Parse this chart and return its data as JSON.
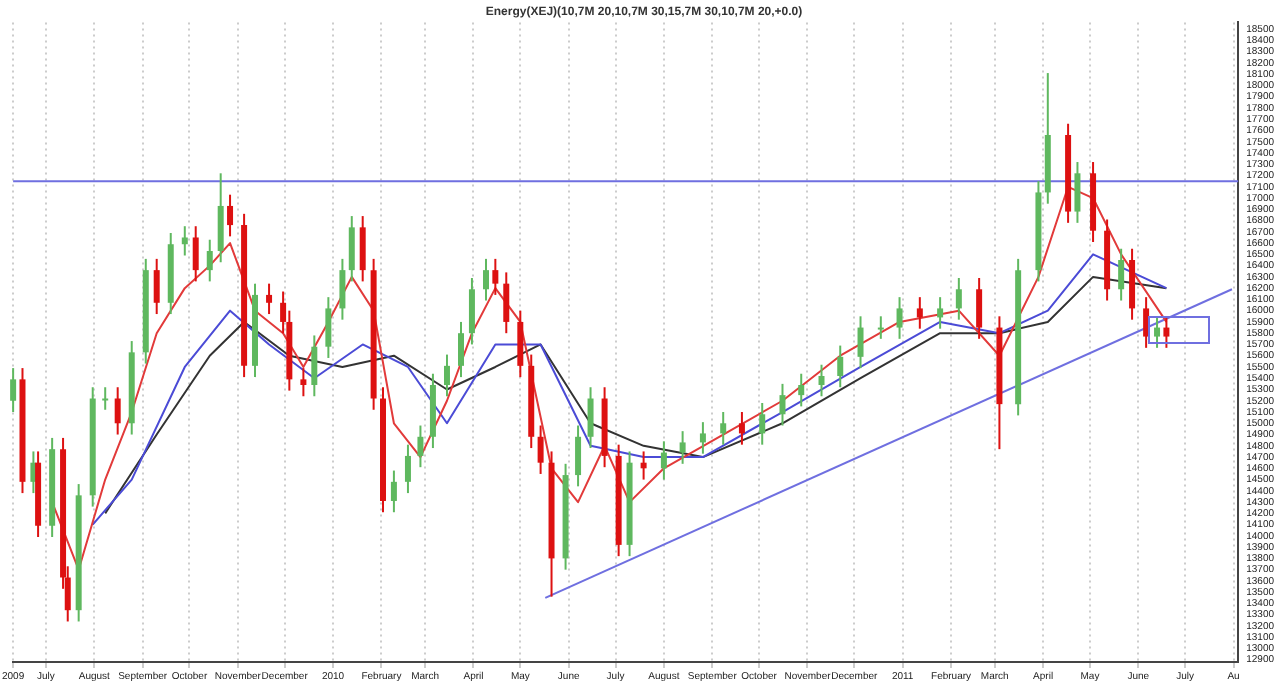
{
  "chart_data": {
    "type": "candlestick",
    "title": "Energy(XEJ)(10,7M 20,10,7M 30,15,7M 30,10,7M 20,+0.0)",
    "x": [
      "2009-06-10",
      "2009-06-16",
      "2009-06-23",
      "2009-06-26",
      "2009-07-05",
      "2009-07-12",
      "2009-07-15",
      "2009-07-22",
      "2009-07-31",
      "2009-08-08",
      "2009-08-16",
      "2009-08-25",
      "2009-09-03",
      "2009-09-10",
      "2009-09-19",
      "2009-09-28",
      "2009-10-05",
      "2009-10-14",
      "2009-10-21",
      "2009-10-27",
      "2009-11-05",
      "2009-11-12",
      "2009-11-21",
      "2009-11-30",
      "2009-12-04",
      "2009-12-13",
      "2009-12-20",
      "2009-12-29",
      "2010-01-07",
      "2010-01-13",
      "2010-01-20",
      "2010-01-27",
      "2010-02-02",
      "2010-02-09",
      "2010-02-18",
      "2010-02-26",
      "2010-03-06",
      "2010-03-15",
      "2010-03-24",
      "2010-03-31",
      "2010-04-09",
      "2010-04-15",
      "2010-04-22",
      "2010-05-01",
      "2010-05-08",
      "2010-05-14",
      "2010-05-21",
      "2010-05-30",
      "2010-06-07",
      "2010-06-15",
      "2010-06-24",
      "2010-07-03",
      "2010-07-10",
      "2010-07-19",
      "2010-08-01",
      "2010-08-13",
      "2010-08-26",
      "2010-09-08",
      "2010-09-20",
      "2010-10-03",
      "2010-10-16",
      "2010-10-28",
      "2010-11-10",
      "2010-11-22",
      "2010-12-05",
      "2010-12-18",
      "2010-12-30",
      "2011-01-12",
      "2011-01-25",
      "2011-02-06",
      "2011-02-19",
      "2011-03-04",
      "2011-03-16",
      "2011-03-29",
      "2011-04-04",
      "2011-04-17",
      "2011-04-23",
      "2011-05-03",
      "2011-05-12",
      "2011-05-21",
      "2011-05-28",
      "2011-06-06",
      "2011-06-13",
      "2011-06-19"
    ],
    "ohlc": [
      [
        15200,
        15490,
        15100,
        15390
      ],
      [
        15390,
        15490,
        14380,
        14480
      ],
      [
        14480,
        14750,
        14380,
        14650
      ],
      [
        14650,
        14750,
        13990,
        14090
      ],
      [
        14090,
        14870,
        13990,
        14770
      ],
      [
        14770,
        14870,
        13530,
        13630
      ],
      [
        13630,
        13730,
        13240,
        13340
      ],
      [
        13340,
        14460,
        13240,
        14360
      ],
      [
        14360,
        15320,
        14260,
        15220
      ],
      [
        15220,
        15320,
        15120,
        15220
      ],
      [
        15220,
        15320,
        14900,
        15000
      ],
      [
        15000,
        15730,
        14900,
        15630
      ],
      [
        15630,
        16460,
        15530,
        16360
      ],
      [
        16360,
        16460,
        15970,
        16070
      ],
      [
        16070,
        16690,
        15970,
        16590
      ],
      [
        16590,
        16750,
        16490,
        16650
      ],
      [
        16650,
        16750,
        16260,
        16360
      ],
      [
        16360,
        16630,
        16260,
        16530
      ],
      [
        16530,
        17220,
        16430,
        16930
      ],
      [
        16930,
        17030,
        16660,
        16760
      ],
      [
        16760,
        16860,
        15410,
        15510
      ],
      [
        15510,
        16240,
        15410,
        16140
      ],
      [
        16140,
        16240,
        15970,
        16070
      ],
      [
        16070,
        16170,
        15800,
        15900
      ],
      [
        15900,
        16000,
        15290,
        15390
      ],
      [
        15390,
        15490,
        15240,
        15340
      ],
      [
        15340,
        15780,
        15240,
        15680
      ],
      [
        15680,
        16120,
        15580,
        16020
      ],
      [
        16020,
        16460,
        15920,
        16360
      ],
      [
        16360,
        16840,
        16260,
        16740
      ],
      [
        16740,
        16840,
        16260,
        16360
      ],
      [
        16360,
        16460,
        15120,
        15220
      ],
      [
        15220,
        15320,
        14210,
        14310
      ],
      [
        14310,
        14580,
        14210,
        14480
      ],
      [
        14480,
        14810,
        14380,
        14710
      ],
      [
        14710,
        14980,
        14610,
        14880
      ],
      [
        14880,
        15440,
        14780,
        15340
      ],
      [
        15340,
        15610,
        15240,
        15510
      ],
      [
        15510,
        15900,
        15410,
        15800
      ],
      [
        15800,
        16290,
        15700,
        16190
      ],
      [
        16190,
        16460,
        16090,
        16360
      ],
      [
        16360,
        16460,
        16140,
        16240
      ],
      [
        16240,
        16340,
        15800,
        15900
      ],
      [
        15900,
        16000,
        15410,
        15510
      ],
      [
        15510,
        15610,
        14780,
        14880
      ],
      [
        14880,
        14980,
        14550,
        14650
      ],
      [
        14650,
        14750,
        13460,
        13800
      ],
      [
        13800,
        14640,
        13700,
        14540
      ],
      [
        14540,
        14980,
        14440,
        14880
      ],
      [
        14880,
        15320,
        14780,
        15220
      ],
      [
        15220,
        15320,
        14610,
        14710
      ],
      [
        14710,
        14810,
        13820,
        13920
      ],
      [
        13920,
        14750,
        13820,
        14650
      ],
      [
        14650,
        14750,
        14500,
        14600
      ],
      [
        14600,
        14840,
        14500,
        14740
      ],
      [
        14740,
        14930,
        14640,
        14830
      ],
      [
        14830,
        15010,
        14730,
        14910
      ],
      [
        14910,
        15100,
        14810,
        15000
      ],
      [
        15000,
        15100,
        14810,
        14910
      ],
      [
        14910,
        15180,
        14810,
        15080
      ],
      [
        15080,
        15350,
        14980,
        15250
      ],
      [
        15250,
        15440,
        15150,
        15340
      ],
      [
        15340,
        15520,
        15240,
        15420
      ],
      [
        15420,
        15690,
        15320,
        15590
      ],
      [
        15590,
        15950,
        15490,
        15850
      ],
      [
        15850,
        15950,
        15750,
        15850
      ],
      [
        15850,
        16120,
        15750,
        16020
      ],
      [
        16020,
        16120,
        15840,
        15940
      ],
      [
        15940,
        16120,
        15840,
        16020
      ],
      [
        16020,
        16290,
        15920,
        16190
      ],
      [
        16190,
        16290,
        15750,
        15850
      ],
      [
        15850,
        15950,
        14770,
        15170
      ],
      [
        15170,
        16460,
        15070,
        16360
      ],
      [
        16360,
        17150,
        16260,
        17050
      ],
      [
        17050,
        18110,
        16950,
        17560
      ],
      [
        17560,
        17660,
        16780,
        16880
      ],
      [
        16880,
        17320,
        16780,
        17220
      ],
      [
        17220,
        17320,
        16610,
        16710
      ],
      [
        16710,
        16810,
        16090,
        16190
      ],
      [
        16190,
        16550,
        16090,
        16450
      ],
      [
        16450,
        16550,
        15920,
        16020
      ],
      [
        16020,
        16120,
        15670,
        15770
      ],
      [
        15770,
        15950,
        15670,
        15850
      ],
      [
        15850,
        15950,
        15670,
        15770
      ]
    ],
    "series": [
      {
        "type": "line",
        "color": "#e23a3a",
        "x": [
          "2009-07-05",
          "2009-07-22",
          "2009-08-08",
          "2009-08-25",
          "2009-09-10",
          "2009-09-28",
          "2009-10-14",
          "2009-10-27",
          "2009-11-12",
          "2009-11-30",
          "2009-12-13",
          "2009-12-29",
          "2010-01-13",
          "2010-01-27",
          "2010-02-09",
          "2010-02-26",
          "2010-03-15",
          "2010-03-31",
          "2010-04-15",
          "2010-05-01",
          "2010-05-21",
          "2010-06-07",
          "2010-06-24",
          "2010-07-10",
          "2010-08-01",
          "2010-09-08",
          "2010-10-16",
          "2010-11-22",
          "2010-12-30",
          "2011-02-06",
          "2011-03-04",
          "2011-03-29",
          "2011-04-17",
          "2011-05-03",
          "2011-05-21",
          "2011-06-19"
        ],
        "values": [
          14300,
          13700,
          14500,
          15100,
          15800,
          16200,
          16400,
          16600,
          16000,
          15800,
          15500,
          15900,
          16300,
          16000,
          15000,
          14700,
          15200,
          15800,
          16200,
          15900,
          14600,
          14300,
          14800,
          14300,
          14600,
          14900,
          15200,
          15600,
          15900,
          16000,
          15600,
          16300,
          17100,
          17000,
          16500,
          15900
        ]
      },
      {
        "type": "line",
        "color": "#4b4bd6",
        "x": [
          "2009-07-31",
          "2009-08-25",
          "2009-09-28",
          "2009-10-27",
          "2009-11-21",
          "2009-12-20",
          "2010-01-20",
          "2010-02-18",
          "2010-03-15",
          "2010-04-15",
          "2010-05-14",
          "2010-06-15",
          "2010-07-19",
          "2010-08-26",
          "2010-10-16",
          "2010-12-05",
          "2011-01-25",
          "2011-03-04",
          "2011-04-04",
          "2011-05-03",
          "2011-06-19"
        ],
        "values": [
          14100,
          14500,
          15500,
          16000,
          15700,
          15400,
          15700,
          15500,
          15000,
          15700,
          15700,
          14800,
          14700,
          14700,
          15100,
          15500,
          15900,
          15800,
          16000,
          16500,
          16200
        ]
      },
      {
        "type": "line",
        "color": "#333333",
        "x": [
          "2009-08-08",
          "2009-09-10",
          "2009-10-14",
          "2009-11-05",
          "2009-12-04",
          "2010-01-07",
          "2010-02-09",
          "2010-03-15",
          "2010-04-15",
          "2010-05-14",
          "2010-06-15",
          "2010-07-19",
          "2010-08-26",
          "2010-10-16",
          "2010-12-05",
          "2011-01-25",
          "2011-03-04",
          "2011-04-04",
          "2011-05-03",
          "2011-06-19"
        ],
        "values": [
          14200,
          14900,
          15600,
          15900,
          15600,
          15500,
          15600,
          15300,
          15500,
          15700,
          15000,
          14800,
          14700,
          15000,
          15400,
          15800,
          15800,
          15900,
          16300,
          16200
        ]
      },
      {
        "type": "line",
        "color": "#6f6fe0",
        "x": [
          "2010-05-17",
          "2011-07-31"
        ],
        "values": [
          13450,
          16190
        ]
      }
    ],
    "ref_lines": [
      {
        "axis": "y",
        "value": 17150,
        "color": "#6f6fe0"
      }
    ],
    "xlim": [
      "2009-06-10",
      "2011-08-04"
    ],
    "xticks": [
      {
        "value": "2009-06-10",
        "label": "2009"
      },
      {
        "value": "2009-07-01",
        "label": "July"
      },
      {
        "value": "2009-08-01",
        "label": "August"
      },
      {
        "value": "2009-09-01",
        "label": "September"
      },
      {
        "value": "2009-10-01",
        "label": "October"
      },
      {
        "value": "2009-11-01",
        "label": "November"
      },
      {
        "value": "2009-12-01",
        "label": "December"
      },
      {
        "value": "2010-01-01",
        "label": "2010"
      },
      {
        "value": "2010-02-01",
        "label": "February"
      },
      {
        "value": "2010-03-01",
        "label": "March"
      },
      {
        "value": "2010-04-01",
        "label": "April"
      },
      {
        "value": "2010-05-01",
        "label": "May"
      },
      {
        "value": "2010-06-01",
        "label": "June"
      },
      {
        "value": "2010-07-01",
        "label": "July"
      },
      {
        "value": "2010-08-01",
        "label": "August"
      },
      {
        "value": "2010-09-01",
        "label": "September"
      },
      {
        "value": "2010-10-01",
        "label": "October"
      },
      {
        "value": "2010-11-01",
        "label": "November"
      },
      {
        "value": "2010-12-01",
        "label": "December"
      },
      {
        "value": "2011-01-01",
        "label": "2011"
      },
      {
        "value": "2011-02-01",
        "label": "February"
      },
      {
        "value": "2011-03-01",
        "label": "March"
      },
      {
        "value": "2011-04-01",
        "label": "April"
      },
      {
        "value": "2011-05-01",
        "label": "May"
      },
      {
        "value": "2011-06-01",
        "label": "June"
      },
      {
        "value": "2011-07-01",
        "label": "July"
      },
      {
        "value": "2011-08-01",
        "label": "Au"
      }
    ],
    "ylim": [
      12880,
      18560
    ],
    "yticks": [
      12900,
      13000,
      13100,
      13200,
      13300,
      13400,
      13500,
      13600,
      13700,
      13800,
      13900,
      14000,
      14100,
      14200,
      14300,
      14400,
      14500,
      14600,
      14700,
      14800,
      14900,
      15000,
      15100,
      15200,
      15300,
      15400,
      15500,
      15600,
      15700,
      15800,
      15900,
      16000,
      16100,
      16200,
      16300,
      16400,
      16500,
      16600,
      16700,
      16800,
      16900,
      17000,
      17100,
      17200,
      17300,
      17400,
      17500,
      17600,
      17700,
      17800,
      17900,
      18000,
      18100,
      18200,
      18300,
      18400,
      18500
    ],
    "grid": "x",
    "legend": false,
    "marker": "none"
  }
}
